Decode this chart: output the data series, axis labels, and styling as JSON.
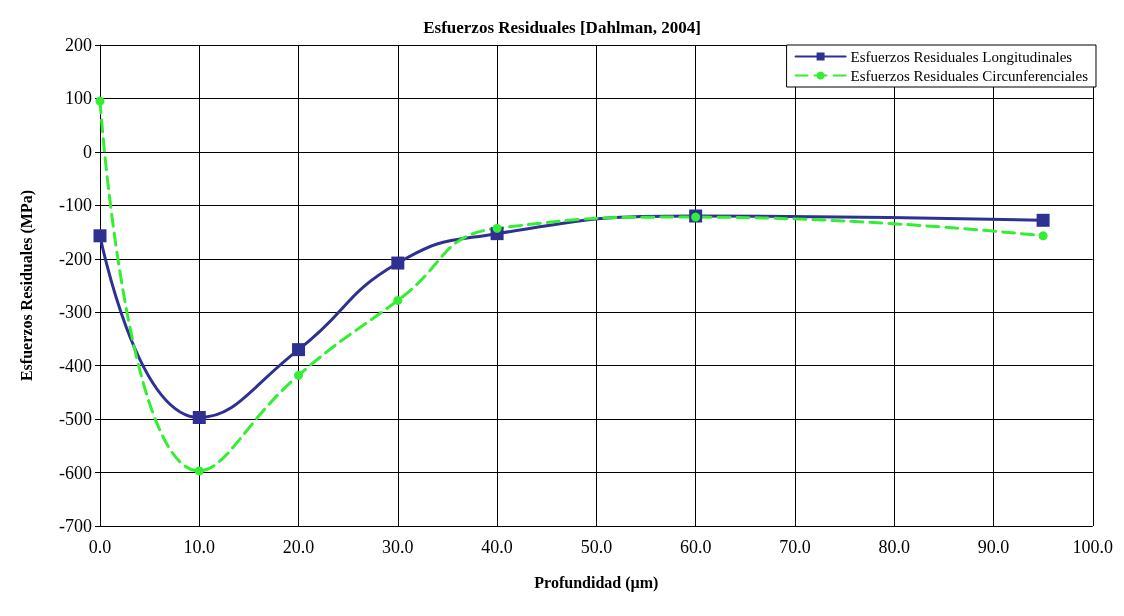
{
  "chart_data": {
    "type": "line",
    "title": "Esfuerzos Residuales [Dahlman, 2004]",
    "xlabel": "Profundidad (µm)",
    "ylabel": "Esfuerzos Residuales (MPa)",
    "series": [
      {
        "name": "Esfuerzos Residuales Longitudinales",
        "color": "#2e3192",
        "marker": "square",
        "line_style": "solid",
        "x": [
          0,
          10,
          20,
          30,
          40,
          60,
          95
        ],
        "values": [
          -157,
          -497,
          -370,
          -208,
          -153,
          -120,
          -128
        ]
      },
      {
        "name": "Esfuerzos Residuales Circunferenciales",
        "color": "#33ee33",
        "marker": "circle",
        "line_style": "dashed",
        "x": [
          0,
          10,
          20,
          30,
          40,
          60,
          95
        ],
        "values": [
          95,
          -597,
          -418,
          -278,
          -143,
          -122,
          -157
        ]
      }
    ],
    "xlim": [
      0,
      100
    ],
    "xticks": [
      {
        "value": 0,
        "label": "0.0"
      },
      {
        "value": 10,
        "label": "10.0"
      },
      {
        "value": 20,
        "label": "20.0"
      },
      {
        "value": 30,
        "label": "30.0"
      },
      {
        "value": 40,
        "label": "40.0"
      },
      {
        "value": 50,
        "label": "50.0"
      },
      {
        "value": 60,
        "label": "60.0"
      },
      {
        "value": 70,
        "label": "70.0"
      },
      {
        "value": 80,
        "label": "80.0"
      },
      {
        "value": 90,
        "label": "90.0"
      },
      {
        "value": 100,
        "label": "100.0"
      }
    ],
    "ylim": [
      -700,
      200
    ],
    "yticks": [
      -700,
      -600,
      -500,
      -400,
      -300,
      -200,
      -100,
      0,
      100,
      200
    ],
    "grid": true,
    "legend": "top right"
  }
}
